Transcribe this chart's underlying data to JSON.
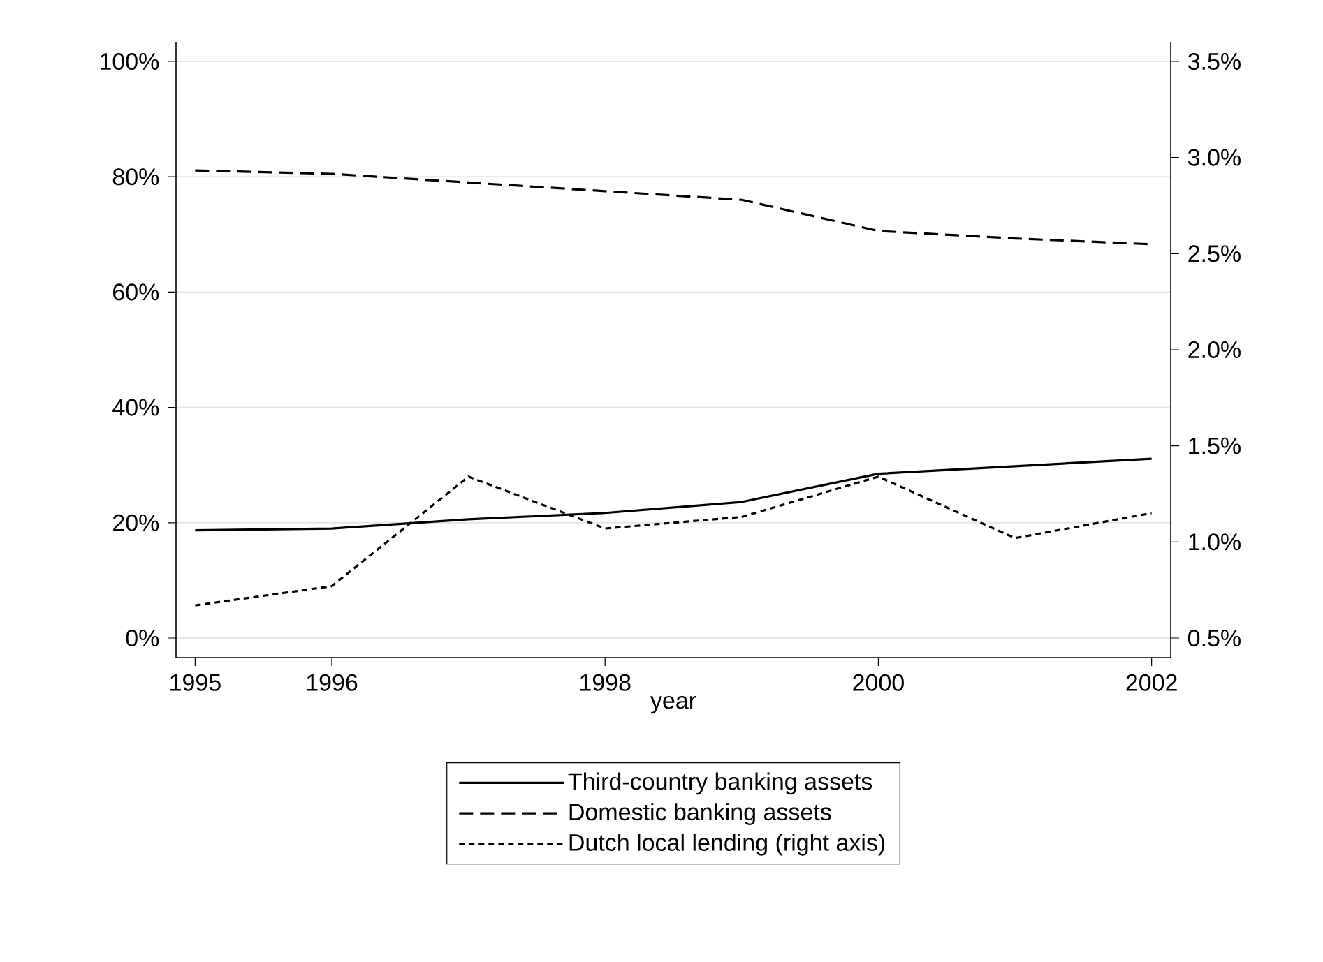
{
  "chart_data": {
    "type": "line",
    "xlabel": "year",
    "x": [
      1995,
      1996,
      1997,
      1998,
      1999,
      2000,
      2001,
      2002
    ],
    "xlim": [
      1994.86,
      2002.14
    ],
    "xticks": [
      1995,
      1996,
      1998,
      2000,
      2002
    ],
    "ylim": [
      0,
      100
    ],
    "yticks": [
      {
        "value": 0,
        "label": "0%"
      },
      {
        "value": 20,
        "label": "20%"
      },
      {
        "value": 40,
        "label": "40%"
      },
      {
        "value": 60,
        "label": "60%"
      },
      {
        "value": 80,
        "label": "80%"
      },
      {
        "value": 100,
        "label": "100%"
      }
    ],
    "y2lim": [
      0.5,
      3.5
    ],
    "y2ticks": [
      {
        "value": 0.5,
        "label": "0.5%"
      },
      {
        "value": 1.0,
        "label": "1.0%"
      },
      {
        "value": 1.5,
        "label": "1.5%"
      },
      {
        "value": 2.0,
        "label": "2.0%"
      },
      {
        "value": 2.5,
        "label": "2.5%"
      },
      {
        "value": 3.0,
        "label": "3.0%"
      },
      {
        "value": 3.5,
        "label": "3.5%"
      }
    ],
    "grid": "y",
    "legend": "bottom",
    "marker": "none",
    "series": [
      {
        "name": "Third-country banking assets",
        "color": "#000000",
        "line_style": "solid",
        "values": [
          18.7,
          19.0,
          20.6,
          21.7,
          23.6,
          28.5,
          29.8,
          31.1
        ]
      },
      {
        "name": "Domestic banking assets",
        "color": "#000000",
        "line_style": "dashed",
        "values": [
          81.1,
          80.5,
          79.0,
          77.5,
          76.0,
          70.6,
          69.3,
          68.3
        ]
      },
      {
        "name": "Dutch local lending (right axis)",
        "color": "#000000",
        "line_style": "dotted",
        "axis": "y2",
        "values": [
          0.67,
          0.77,
          1.34,
          1.07,
          1.13,
          1.34,
          1.02,
          1.15
        ]
      }
    ]
  }
}
